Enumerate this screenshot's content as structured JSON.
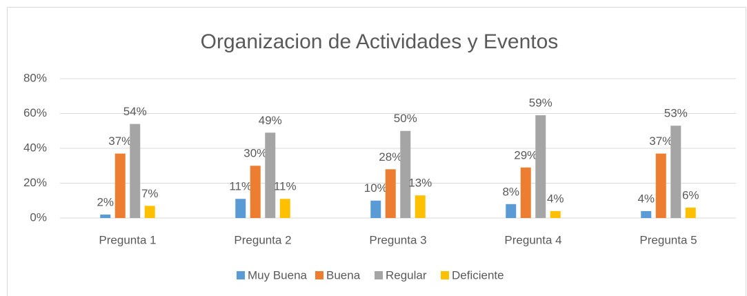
{
  "chart_data": {
    "type": "bar",
    "title": "Organizacion de Actividades y Eventos",
    "categories": [
      "Pregunta 1",
      "Pregunta 2",
      "Pregunta 3",
      "Pregunta 4",
      "Pregunta 5"
    ],
    "series": [
      {
        "name": "Muy Buena",
        "color": "#5b9bd5",
        "values": [
          2,
          11,
          10,
          8,
          4
        ],
        "value_labels": [
          "2%",
          "11%",
          "10%",
          "8%",
          "4%"
        ]
      },
      {
        "name": "Buena",
        "color": "#ed7d31",
        "values": [
          37,
          30,
          28,
          29,
          37
        ],
        "value_labels": [
          "37%",
          "30%",
          "28%",
          "29%",
          "37%"
        ]
      },
      {
        "name": "Regular",
        "color": "#a5a5a5",
        "values": [
          54,
          49,
          50,
          59,
          53
        ],
        "value_labels": [
          "54%",
          "49%",
          "50%",
          "59%",
          "53%"
        ]
      },
      {
        "name": "Deficiente",
        "color": "#ffc000",
        "values": [
          7,
          11,
          13,
          4,
          6
        ],
        "value_labels": [
          "7%",
          "11%",
          "13%",
          "4%",
          "6%"
        ]
      }
    ],
    "ylim": [
      0,
      80
    ],
    "yticks": [
      {
        "value": 0,
        "label": "0%"
      },
      {
        "value": 20,
        "label": "20%"
      },
      {
        "value": 40,
        "label": "40%"
      },
      {
        "value": 60,
        "label": "60%"
      },
      {
        "value": 80,
        "label": "80%"
      }
    ],
    "grid": true,
    "legend": "bottom"
  }
}
